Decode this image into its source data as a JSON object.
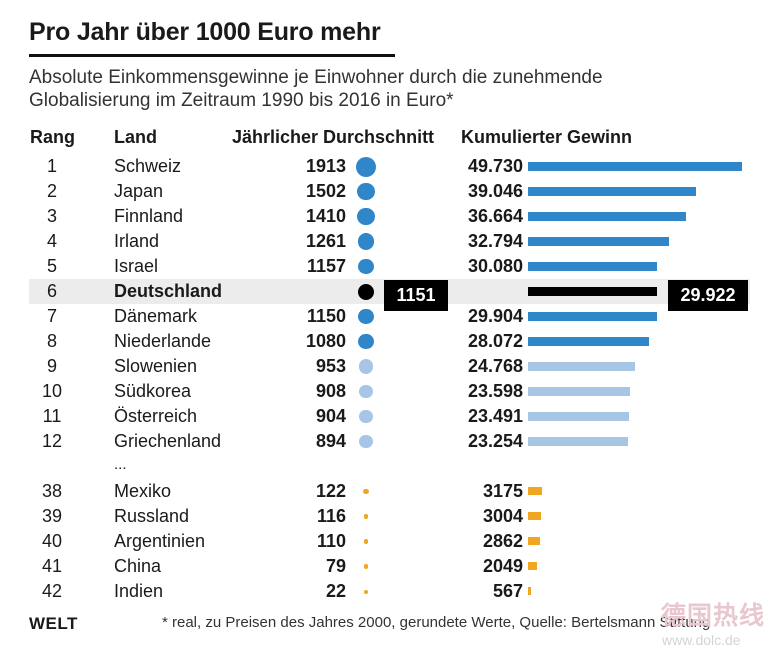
{
  "title": "Pro Jahr über 1000 Euro mehr",
  "subtitle": "Absolute Einkommensgewinne je Einwohner durch die zunehmende Globalisierung im Zeitraum 1990 bis 2016 in Euro*",
  "headers": {
    "rank": "Rang",
    "country": "Land",
    "average": "Jährlicher Durchschnitt",
    "cumulative": "Kumulierter Gewinn"
  },
  "ellipsis": "...",
  "footer": {
    "logo": "WELT",
    "note": "* real, zu Preisen des Jahres 2000, gerundete Werte, Quelle: Bertelsmann Stiftung"
  },
  "watermark": {
    "line1": "德国热线",
    "line2": "www.dolc.de"
  },
  "colors": {
    "dark_blue": "#2f86c9",
    "light_blue": "#a7c6e6",
    "orange": "#f0a61e",
    "highlight": "#000000"
  },
  "chart_data": {
    "type": "table",
    "columns": [
      "Rang",
      "Land",
      "Jährlicher Durchschnitt",
      "Kumulierter Gewinn"
    ],
    "rows": [
      {
        "rank": "1",
        "country": "Schweiz",
        "average": 1913,
        "average_label": "1913",
        "cumulative": 49730,
        "cumulative_label": "49.730",
        "group": "top"
      },
      {
        "rank": "2",
        "country": "Japan",
        "average": 1502,
        "average_label": "1502",
        "cumulative": 39046,
        "cumulative_label": "39.046",
        "group": "top"
      },
      {
        "rank": "3",
        "country": "Finnland",
        "average": 1410,
        "average_label": "1410",
        "cumulative": 36664,
        "cumulative_label": "36.664",
        "group": "top"
      },
      {
        "rank": "4",
        "country": "Irland",
        "average": 1261,
        "average_label": "1261",
        "cumulative": 32794,
        "cumulative_label": "32.794",
        "group": "top"
      },
      {
        "rank": "5",
        "country": "Israel",
        "average": 1157,
        "average_label": "1157",
        "cumulative": 30080,
        "cumulative_label": "30.080",
        "group": "top"
      },
      {
        "rank": "6",
        "country": "Deutschland",
        "average": 1151,
        "average_label": "1151",
        "cumulative": 29922,
        "cumulative_label": "29.922",
        "group": "highlight"
      },
      {
        "rank": "7",
        "country": "Dänemark",
        "average": 1150,
        "average_label": "1150",
        "cumulative": 29904,
        "cumulative_label": "29.904",
        "group": "top"
      },
      {
        "rank": "8",
        "country": "Niederlande",
        "average": 1080,
        "average_label": "1080",
        "cumulative": 28072,
        "cumulative_label": "28.072",
        "group": "top"
      },
      {
        "rank": "9",
        "country": "Slowenien",
        "average": 953,
        "average_label": "953",
        "cumulative": 24768,
        "cumulative_label": "24.768",
        "group": "mid"
      },
      {
        "rank": "10",
        "country": "Südkorea",
        "average": 908,
        "average_label": "908",
        "cumulative": 23598,
        "cumulative_label": "23.598",
        "group": "mid"
      },
      {
        "rank": "11",
        "country": "Österreich",
        "average": 904,
        "average_label": "904",
        "cumulative": 23491,
        "cumulative_label": "23.491",
        "group": "mid"
      },
      {
        "rank": "12",
        "country": "Griechenland",
        "average": 894,
        "average_label": "894",
        "cumulative": 23254,
        "cumulative_label": "23.254",
        "group": "mid"
      },
      {
        "rank": "38",
        "country": "Mexiko",
        "average": 122,
        "average_label": "122",
        "cumulative": 3175,
        "cumulative_label": "3175",
        "group": "low"
      },
      {
        "rank": "39",
        "country": "Russland",
        "average": 116,
        "average_label": "116",
        "cumulative": 3004,
        "cumulative_label": "3004",
        "group": "low"
      },
      {
        "rank": "40",
        "country": "Argentinien",
        "average": 110,
        "average_label": "110",
        "cumulative": 2862,
        "cumulative_label": "2862",
        "group": "low"
      },
      {
        "rank": "41",
        "country": "China",
        "average": 79,
        "average_label": "79",
        "cumulative": 2049,
        "cumulative_label": "2049",
        "group": "low"
      },
      {
        "rank": "42",
        "country": "Indien",
        "average": 22,
        "average_label": "22",
        "cumulative": 567,
        "cumulative_label": "567",
        "group": "low"
      }
    ]
  }
}
